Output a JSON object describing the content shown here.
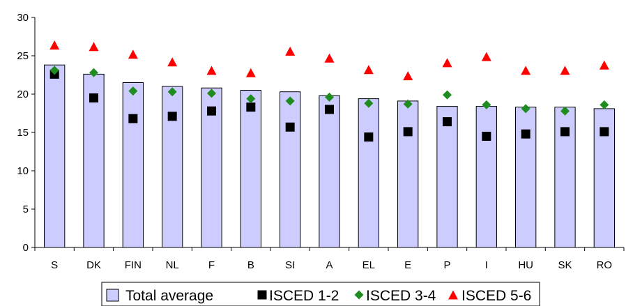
{
  "chart_data": {
    "type": "bar",
    "categories": [
      "S",
      "DK",
      "FIN",
      "NL",
      "F",
      "B",
      "SI",
      "A",
      "EL",
      "E",
      "P",
      "I",
      "HU",
      "SK",
      "RO"
    ],
    "ylim": [
      0,
      30
    ],
    "yticks": [
      0,
      5,
      10,
      15,
      20,
      25,
      30
    ],
    "grid": false,
    "legend_position": "bottom",
    "series": [
      {
        "name": "Total average",
        "kind": "bar",
        "color": "#ccccff",
        "values": [
          23.8,
          22.6,
          21.5,
          21.0,
          20.8,
          20.5,
          20.3,
          19.8,
          19.4,
          19.1,
          18.4,
          18.4,
          18.3,
          18.3,
          18.1
        ]
      },
      {
        "name": "ISCED 1-2",
        "kind": "marker",
        "marker": "square",
        "color": "#000000",
        "values": [
          22.6,
          19.5,
          16.8,
          17.1,
          17.8,
          18.3,
          15.7,
          18.0,
          14.4,
          15.1,
          16.4,
          14.5,
          14.8,
          15.1,
          15.1
        ]
      },
      {
        "name": "ISCED 3-4",
        "kind": "marker",
        "marker": "diamond",
        "color": "#1e8c1e",
        "values": [
          23.1,
          22.8,
          20.4,
          20.3,
          20.1,
          19.4,
          19.1,
          19.6,
          18.8,
          18.7,
          19.9,
          18.6,
          18.1,
          17.8,
          18.6
        ]
      },
      {
        "name": "ISCED 5-6",
        "kind": "marker",
        "marker": "triangle",
        "color": "#ff0000",
        "values": [
          26.4,
          26.2,
          25.2,
          24.2,
          23.1,
          22.8,
          25.6,
          24.7,
          23.2,
          22.4,
          24.1,
          24.9,
          23.1,
          23.1,
          23.8
        ]
      }
    ]
  }
}
